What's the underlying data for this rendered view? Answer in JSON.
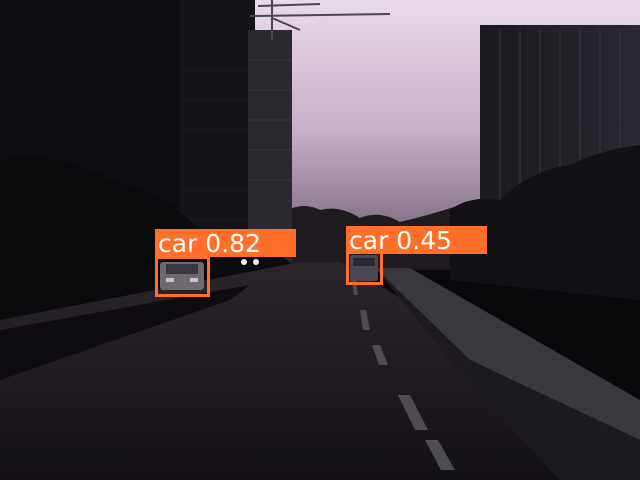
{
  "detections": [
    {
      "class_label": "car",
      "confidence": "0.82",
      "label": "car 0.82"
    },
    {
      "class_label": "car",
      "confidence": "0.45",
      "label": "car 0.45"
    }
  ],
  "colors": {
    "box": "#ff6f2a",
    "label_text": "#ffffff",
    "sky": "#d8c3d6"
  }
}
